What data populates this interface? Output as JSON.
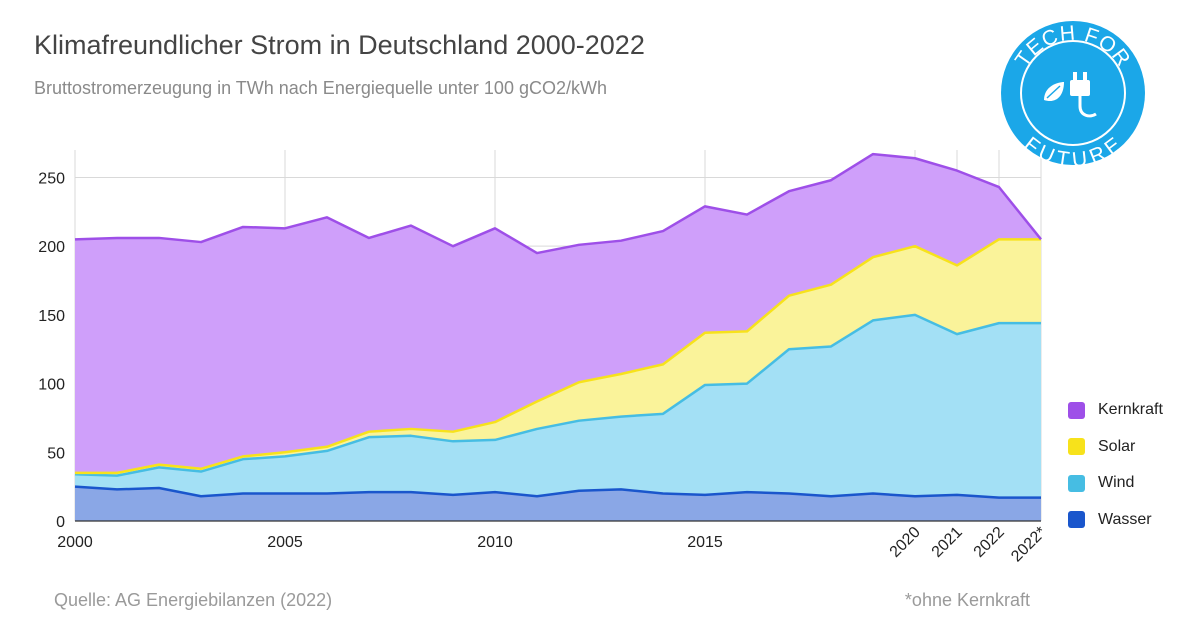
{
  "title": "Klimafreundlicher Strom in Deutschland 2000-2022",
  "subtitle": "Bruttostromerzeugung in TWh nach Energiequelle unter 100 gCO2/kWh",
  "source": "Quelle: AG Energiebilanzen (2022)",
  "footnote": "*ohne Kernkraft",
  "logo": {
    "text_top": "TECH FOR",
    "text_bottom": "FUTURE",
    "icon": "plug-leaf-icon",
    "color": "#1ba7e8"
  },
  "chart_data": {
    "type": "area",
    "stacked": true,
    "x": [
      "2000",
      "2001",
      "2002",
      "2003",
      "2004",
      "2005",
      "2006",
      "2007",
      "2008",
      "2009",
      "2010",
      "2011",
      "2012",
      "2013",
      "2014",
      "2015",
      "2016",
      "2017",
      "2018",
      "2019",
      "2020",
      "2021",
      "2022",
      "2022*"
    ],
    "series": [
      {
        "name": "Wasser",
        "color": "#1a56cc",
        "fill": "#8aa7e6",
        "values": [
          25,
          23,
          24,
          18,
          20,
          20,
          20,
          21,
          21,
          19,
          21,
          18,
          22,
          23,
          20,
          19,
          21,
          20,
          18,
          20,
          18,
          19,
          17,
          17
        ]
      },
      {
        "name": "Wind",
        "color": "#46bde3",
        "fill": "#a3e0f5",
        "values": [
          9,
          10,
          15,
          18,
          25,
          27,
          31,
          40,
          41,
          39,
          38,
          49,
          51,
          53,
          58,
          80,
          79,
          105,
          109,
          126,
          132,
          117,
          127,
          127
        ]
      },
      {
        "name": "Solar",
        "color": "#f7e21b",
        "fill": "#faf39a",
        "values": [
          1,
          2,
          2,
          2,
          2,
          3,
          3,
          4,
          5,
          7,
          13,
          20,
          28,
          31,
          36,
          38,
          38,
          39,
          45,
          46,
          50,
          50,
          61,
          61
        ]
      },
      {
        "name": "Kernkraft",
        "color": "#9e4fe8",
        "fill": "#cf9ffa",
        "values": [
          170,
          171,
          165,
          165,
          167,
          163,
          167,
          141,
          148,
          135,
          141,
          108,
          100,
          97,
          97,
          92,
          85,
          76,
          76,
          75,
          64,
          69,
          38,
          0
        ]
      }
    ],
    "yticks": [
      0,
      50,
      100,
      150,
      200,
      250
    ],
    "ylim": [
      0,
      270
    ],
    "xticks_major": [
      "2000",
      "2005",
      "2010",
      "2015"
    ],
    "xticks_rotated": [
      "2020",
      "2021",
      "2022",
      "2022*"
    ],
    "grid": true,
    "legend_position": "right",
    "legend_order": [
      "Kernkraft",
      "Solar",
      "Wind",
      "Wasser"
    ]
  }
}
